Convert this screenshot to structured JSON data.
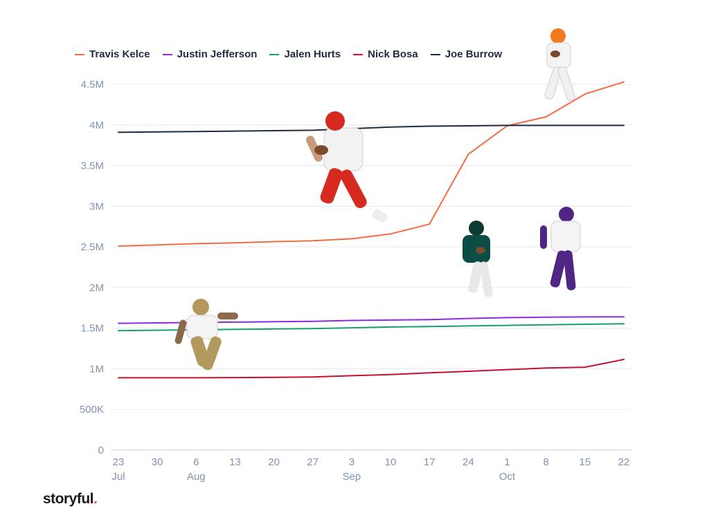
{
  "legend": {
    "items": [
      {
        "label": "Travis Kelce",
        "color": "#f26b43"
      },
      {
        "label": "Justin Jefferson",
        "color": "#8a2be2"
      },
      {
        "label": "Jalen Hurts",
        "color": "#1a9e6a"
      },
      {
        "label": "Nick Bosa",
        "color": "#c8102e"
      },
      {
        "label": "Joe Burrow",
        "color": "#1f2a44"
      }
    ]
  },
  "logo": {
    "text": "storyful",
    "dot": "."
  },
  "chart_data": {
    "type": "line",
    "title": "",
    "xlabel": "",
    "ylabel": "",
    "ylim": [
      0,
      4500000
    ],
    "grid": true,
    "legend_position": "top",
    "y_ticks": [
      {
        "value": 0,
        "label": "0"
      },
      {
        "value": 500000,
        "label": "500K"
      },
      {
        "value": 1000000,
        "label": "1M"
      },
      {
        "value": 1500000,
        "label": "1.5M"
      },
      {
        "value": 2000000,
        "label": "2M"
      },
      {
        "value": 2500000,
        "label": "2.5M"
      },
      {
        "value": 3000000,
        "label": "3M"
      },
      {
        "value": 3500000,
        "label": "3.5M"
      },
      {
        "value": 4000000,
        "label": "4M"
      },
      {
        "value": 4500000,
        "label": "4.5M"
      }
    ],
    "x_ticks": [
      {
        "day": "23",
        "month": "Jul"
      },
      {
        "day": "30",
        "month": ""
      },
      {
        "day": "6",
        "month": "Aug"
      },
      {
        "day": "13",
        "month": ""
      },
      {
        "day": "20",
        "month": ""
      },
      {
        "day": "27",
        "month": ""
      },
      {
        "day": "3",
        "month": "Sep"
      },
      {
        "day": "10",
        "month": ""
      },
      {
        "day": "17",
        "month": ""
      },
      {
        "day": "24",
        "month": ""
      },
      {
        "day": "1",
        "month": "Oct"
      },
      {
        "day": "8",
        "month": ""
      },
      {
        "day": "15",
        "month": ""
      },
      {
        "day": "22",
        "month": ""
      }
    ],
    "categories": [
      "Jul 23",
      "Jul 30",
      "Aug 6",
      "Aug 13",
      "Aug 20",
      "Aug 27",
      "Sep 3",
      "Sep 10",
      "Sep 17",
      "Sep 24",
      "Oct 1",
      "Oct 8",
      "Oct 15",
      "Oct 22"
    ],
    "series": [
      {
        "name": "Travis Kelce",
        "color": "#f26b43",
        "values": [
          2510000,
          2525000,
          2540000,
          2550000,
          2565000,
          2575000,
          2600000,
          2660000,
          2780000,
          3640000,
          3990000,
          4100000,
          4380000,
          4530000
        ]
      },
      {
        "name": "Justin Jefferson",
        "color": "#8a2be2",
        "values": [
          1560000,
          1565000,
          1570000,
          1575000,
          1580000,
          1585000,
          1595000,
          1600000,
          1605000,
          1620000,
          1630000,
          1635000,
          1638000,
          1640000
        ]
      },
      {
        "name": "Jalen Hurts",
        "color": "#1a9e6a",
        "values": [
          1470000,
          1475000,
          1480000,
          1485000,
          1490000,
          1495000,
          1505000,
          1515000,
          1520000,
          1528000,
          1535000,
          1542000,
          1548000,
          1555000
        ]
      },
      {
        "name": "Nick Bosa",
        "color": "#c8102e",
        "values": [
          890000,
          890000,
          890000,
          892000,
          895000,
          900000,
          915000,
          930000,
          950000,
          970000,
          990000,
          1010000,
          1020000,
          1115000
        ]
      },
      {
        "name": "Joe Burrow",
        "color": "#1f2a44",
        "values": [
          3910000,
          3915000,
          3920000,
          3925000,
          3930000,
          3935000,
          3955000,
          3975000,
          3985000,
          3990000,
          3995000,
          3995000,
          3995000,
          3995000
        ]
      }
    ]
  }
}
